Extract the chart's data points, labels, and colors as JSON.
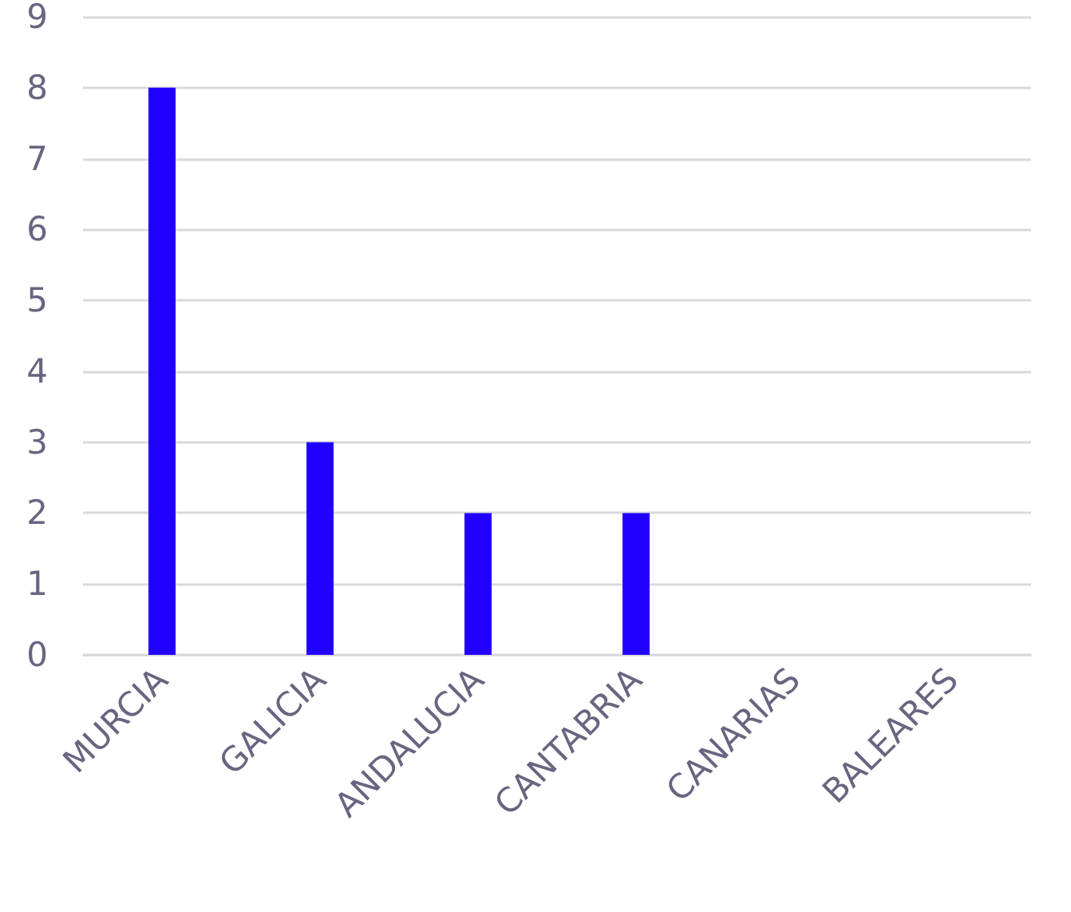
{
  "chart_data": {
    "type": "bar",
    "categories": [
      "MURCIA",
      "GALICIA",
      "ANDALUCIA",
      "CANTABRIA",
      "CANARIAS",
      "BALEARES"
    ],
    "values": [
      8,
      3,
      2,
      2,
      0,
      0
    ],
    "color": "#2200ff",
    "ylim": [
      0,
      9
    ],
    "yticks": [
      0,
      1,
      2,
      3,
      4,
      5,
      6,
      7,
      8,
      9
    ],
    "grid": "y"
  }
}
